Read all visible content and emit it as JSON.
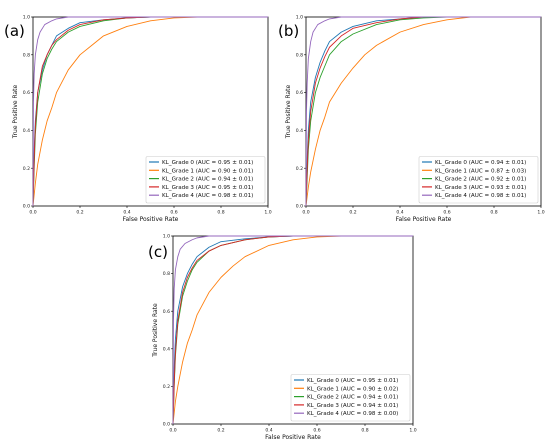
{
  "chart_data": [
    {
      "panel": "(a)",
      "type": "line",
      "xlabel": "False Positive Rate",
      "ylabel": "True Positive Rate",
      "xlim": [
        0.0,
        1.0
      ],
      "ylim": [
        0.0,
        1.0
      ],
      "xticks": [
        "0.0",
        "0.2",
        "0.4",
        "0.6",
        "0.8",
        "1.0"
      ],
      "yticks": [
        "0.0",
        "0.2",
        "0.4",
        "0.6",
        "0.8",
        "1.0"
      ],
      "legend_position": "lower-right",
      "series": [
        {
          "name": "KL_Grade 0 (AUC = 0.95 ± 0.01)",
          "color": "#1f77b4",
          "x": [
            0,
            0.005,
            0.01,
            0.02,
            0.04,
            0.06,
            0.08,
            0.1,
            0.15,
            0.2,
            0.3,
            0.4,
            0.5,
            0.6,
            1.0
          ],
          "y": [
            0,
            0.3,
            0.45,
            0.6,
            0.72,
            0.8,
            0.85,
            0.9,
            0.94,
            0.97,
            0.985,
            0.995,
            1.0,
            1.0,
            1.0
          ]
        },
        {
          "name": "KL_Grade 1 (AUC = 0.90 ± 0.01)",
          "color": "#ff7f0e",
          "x": [
            0,
            0.01,
            0.02,
            0.04,
            0.06,
            0.08,
            0.1,
            0.15,
            0.2,
            0.25,
            0.3,
            0.4,
            0.5,
            0.6,
            0.7,
            1.0
          ],
          "y": [
            0,
            0.12,
            0.22,
            0.35,
            0.45,
            0.52,
            0.6,
            0.72,
            0.8,
            0.85,
            0.9,
            0.95,
            0.98,
            0.995,
            1.0,
            1.0
          ]
        },
        {
          "name": "KL_Grade 2 (AUC = 0.94 ± 0.01)",
          "color": "#2ca02c",
          "x": [
            0,
            0.005,
            0.01,
            0.02,
            0.04,
            0.06,
            0.08,
            0.1,
            0.15,
            0.2,
            0.3,
            0.4,
            0.5,
            1.0
          ],
          "y": [
            0,
            0.2,
            0.38,
            0.55,
            0.7,
            0.78,
            0.83,
            0.87,
            0.92,
            0.95,
            0.98,
            0.995,
            1.0,
            1.0
          ]
        },
        {
          "name": "KL_Grade 3 (AUC = 0.95 ± 0.01)",
          "color": "#d62728",
          "x": [
            0,
            0.005,
            0.01,
            0.02,
            0.04,
            0.06,
            0.08,
            0.1,
            0.15,
            0.2,
            0.3,
            0.4,
            0.5,
            1.0
          ],
          "y": [
            0,
            0.25,
            0.42,
            0.6,
            0.74,
            0.8,
            0.85,
            0.88,
            0.93,
            0.96,
            0.985,
            0.995,
            1.0,
            1.0
          ]
        },
        {
          "name": "KL_Grade 4 (AUC = 0.98 ± 0.01)",
          "color": "#9467bd",
          "x": [
            0,
            0.002,
            0.005,
            0.01,
            0.02,
            0.03,
            0.05,
            0.08,
            0.1,
            0.15,
            0.2,
            1.0
          ],
          "y": [
            0,
            0.55,
            0.7,
            0.8,
            0.88,
            0.92,
            0.96,
            0.98,
            0.99,
            1.0,
            1.0,
            1.0
          ]
        }
      ]
    },
    {
      "panel": "(b)",
      "type": "line",
      "xlabel": "False Positive Rate",
      "ylabel": "True Positive Rate",
      "xlim": [
        0.0,
        1.0
      ],
      "ylim": [
        0.0,
        1.0
      ],
      "xticks": [
        "0.0",
        "0.2",
        "0.4",
        "0.6",
        "0.8",
        "1.0"
      ],
      "yticks": [
        "0.0",
        "0.2",
        "0.4",
        "0.6",
        "0.8",
        "1.0"
      ],
      "legend_position": "lower-right",
      "series": [
        {
          "name": "KL_Grade 0 (AUC = 0.94 ± 0.01)",
          "color": "#1f77b4",
          "x": [
            0,
            0.005,
            0.01,
            0.02,
            0.04,
            0.06,
            0.08,
            0.1,
            0.15,
            0.2,
            0.3,
            0.4,
            0.5,
            1.0
          ],
          "y": [
            0,
            0.25,
            0.4,
            0.55,
            0.68,
            0.76,
            0.82,
            0.87,
            0.92,
            0.95,
            0.98,
            0.99,
            1.0,
            1.0
          ]
        },
        {
          "name": "KL_Grade 1 (AUC = 0.87 ± 0.03)",
          "color": "#ff7f0e",
          "x": [
            0,
            0.01,
            0.02,
            0.04,
            0.06,
            0.08,
            0.1,
            0.15,
            0.2,
            0.25,
            0.3,
            0.4,
            0.5,
            0.6,
            0.7,
            1.0
          ],
          "y": [
            0,
            0.1,
            0.18,
            0.3,
            0.4,
            0.47,
            0.55,
            0.65,
            0.73,
            0.8,
            0.85,
            0.92,
            0.96,
            0.985,
            1.0,
            1.0
          ]
        },
        {
          "name": "KL_Grade 2 (AUC = 0.92 ± 0.01)",
          "color": "#2ca02c",
          "x": [
            0,
            0.005,
            0.01,
            0.02,
            0.04,
            0.06,
            0.08,
            0.1,
            0.15,
            0.2,
            0.3,
            0.4,
            0.5,
            0.6,
            1.0
          ],
          "y": [
            0,
            0.15,
            0.3,
            0.45,
            0.6,
            0.68,
            0.74,
            0.8,
            0.87,
            0.91,
            0.96,
            0.985,
            0.995,
            1.0,
            1.0
          ]
        },
        {
          "name": "KL_Grade 3 (AUC = 0.93 ± 0.01)",
          "color": "#d62728",
          "x": [
            0,
            0.005,
            0.01,
            0.02,
            0.04,
            0.06,
            0.08,
            0.1,
            0.15,
            0.2,
            0.3,
            0.4,
            0.5,
            1.0
          ],
          "y": [
            0,
            0.2,
            0.35,
            0.5,
            0.65,
            0.73,
            0.79,
            0.84,
            0.9,
            0.94,
            0.97,
            0.99,
            1.0,
            1.0
          ]
        },
        {
          "name": "KL_Grade 4 (AUC = 0.98 ± 0.01)",
          "color": "#9467bd",
          "x": [
            0,
            0.002,
            0.005,
            0.01,
            0.02,
            0.03,
            0.05,
            0.08,
            0.1,
            0.15,
            0.2,
            1.0
          ],
          "y": [
            0,
            0.5,
            0.65,
            0.78,
            0.87,
            0.92,
            0.96,
            0.98,
            0.99,
            1.0,
            1.0,
            1.0
          ]
        }
      ]
    },
    {
      "panel": "(c)",
      "type": "line",
      "xlabel": "False Positive Rate",
      "ylabel": "True Positive Rate",
      "xlim": [
        0.0,
        1.0
      ],
      "ylim": [
        0.0,
        1.0
      ],
      "xticks": [
        "0.0",
        "0.2",
        "0.4",
        "0.6",
        "0.8",
        "1.0"
      ],
      "yticks": [
        "0.0",
        "0.2",
        "0.4",
        "0.6",
        "0.8",
        "1.0"
      ],
      "legend_position": "lower-right",
      "series": [
        {
          "name": "KL_Grade 0 (AUC = 0.95 ± 0.01)",
          "color": "#1f77b4",
          "x": [
            0,
            0.005,
            0.01,
            0.02,
            0.04,
            0.06,
            0.08,
            0.1,
            0.15,
            0.2,
            0.3,
            0.4,
            0.5,
            1.0
          ],
          "y": [
            0,
            0.3,
            0.45,
            0.6,
            0.73,
            0.8,
            0.85,
            0.89,
            0.94,
            0.97,
            0.985,
            0.995,
            1.0,
            1.0
          ]
        },
        {
          "name": "KL_Grade 1 (AUC = 0.90 ± 0.02)",
          "color": "#ff7f0e",
          "x": [
            0,
            0.01,
            0.02,
            0.04,
            0.06,
            0.08,
            0.1,
            0.15,
            0.2,
            0.25,
            0.3,
            0.4,
            0.5,
            0.6,
            0.7,
            1.0
          ],
          "y": [
            0,
            0.12,
            0.2,
            0.33,
            0.43,
            0.5,
            0.58,
            0.7,
            0.78,
            0.84,
            0.89,
            0.95,
            0.98,
            0.995,
            1.0,
            1.0
          ]
        },
        {
          "name": "KL_Grade 2 (AUC = 0.94 ± 0.01)",
          "color": "#2ca02c",
          "x": [
            0,
            0.005,
            0.01,
            0.02,
            0.04,
            0.06,
            0.08,
            0.1,
            0.15,
            0.2,
            0.3,
            0.4,
            0.5,
            1.0
          ],
          "y": [
            0,
            0.2,
            0.36,
            0.53,
            0.68,
            0.76,
            0.82,
            0.86,
            0.92,
            0.95,
            0.98,
            0.995,
            1.0,
            1.0
          ]
        },
        {
          "name": "KL_Grade 3 (AUC = 0.94 ± 0.01)",
          "color": "#d62728",
          "x": [
            0,
            0.005,
            0.01,
            0.02,
            0.04,
            0.06,
            0.08,
            0.1,
            0.15,
            0.2,
            0.3,
            0.4,
            0.5,
            1.0
          ],
          "y": [
            0,
            0.22,
            0.38,
            0.55,
            0.7,
            0.78,
            0.83,
            0.87,
            0.92,
            0.95,
            0.98,
            0.995,
            1.0,
            1.0
          ]
        },
        {
          "name": "KL_Grade 4 (AUC = 0.98 ± 0.00)",
          "color": "#9467bd",
          "x": [
            0,
            0.002,
            0.005,
            0.01,
            0.02,
            0.03,
            0.05,
            0.08,
            0.1,
            0.15,
            0.2,
            1.0
          ],
          "y": [
            0,
            0.55,
            0.72,
            0.82,
            0.89,
            0.93,
            0.96,
            0.98,
            0.99,
            1.0,
            1.0,
            1.0
          ]
        }
      ]
    }
  ]
}
